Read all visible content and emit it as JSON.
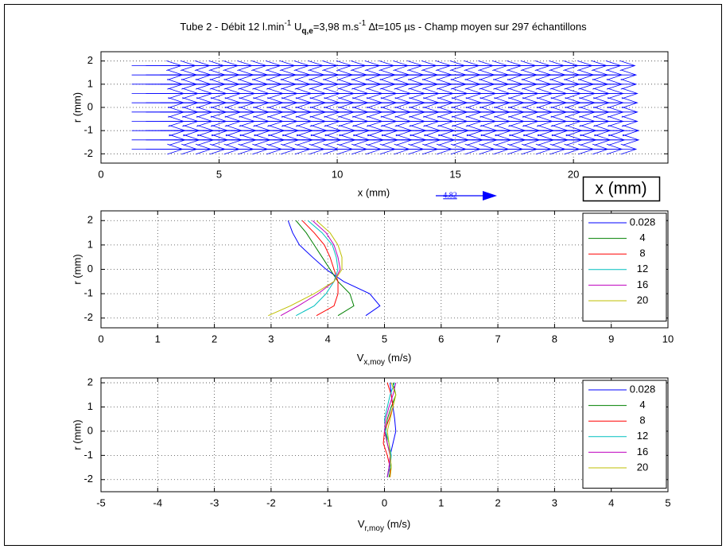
{
  "chart_data": [
    {
      "type": "quiver",
      "title": [
        "Tube 2 - Débit 12 l.min",
        "-1",
        " U",
        "q,e",
        "=3,98 m.s",
        "-1",
        " ∆t=105 µs - Champ moyen sur 297 échantillons"
      ],
      "xlabel": "x (mm)",
      "ylabel": "r (mm)",
      "xlim": [
        0,
        24
      ],
      "ylim": [
        -2.4,
        2.4
      ],
      "xticks": [
        0,
        5,
        10,
        15,
        20
      ],
      "yticks": [
        2,
        1,
        0,
        -1,
        -2
      ],
      "grid": true,
      "color": "#0000ff",
      "x": [
        1.3,
        1.9,
        2.5,
        3.1,
        3.7,
        4.3,
        4.9,
        5.5,
        6.1,
        6.7,
        7.3,
        7.9,
        8.5,
        9.1,
        9.7,
        10.3,
        10.9,
        11.5,
        12.1,
        12.7,
        13.3,
        13.9,
        14.5,
        15.1,
        15.7,
        16.3,
        16.9,
        17.5,
        18.1,
        18.7,
        19.3,
        19.9,
        20.5
      ],
      "rows": [
        {
          "r": 1.8,
          "u": 3.9
        },
        {
          "r": 1.4,
          "u": 4.0
        },
        {
          "r": 1.0,
          "u": 4.0
        },
        {
          "r": 0.6,
          "u": 4.1
        },
        {
          "r": 0.2,
          "u": 4.1
        },
        {
          "r": -0.2,
          "u": 4.1
        },
        {
          "r": -0.6,
          "u": 4.1
        },
        {
          "r": -1.0,
          "u": 4.2
        },
        {
          "r": -1.4,
          "u": 4.2
        },
        {
          "r": -1.8,
          "u": 4.0
        }
      ],
      "reference": 4.82,
      "annotation": "x (mm)"
    },
    {
      "type": "line",
      "xlabel": [
        "V",
        "x,moy",
        " (m/s)"
      ],
      "ylabel": "r (mm)",
      "xlim": [
        0,
        10
      ],
      "ylim": [
        -2.4,
        2.4
      ],
      "xticks": [
        0,
        1,
        2,
        3,
        4,
        5,
        6,
        7,
        8,
        9,
        10
      ],
      "yticks": [
        2,
        1,
        0,
        -1,
        -2
      ],
      "grid": true,
      "legend": "upper right",
      "y": [
        2,
        1.5,
        1,
        0.5,
        0,
        -0.5,
        -1,
        -1.5,
        -1.9
      ],
      "series": [
        {
          "name": "0.028",
          "color": "#0000ff",
          "values": [
            3.3,
            3.38,
            3.5,
            3.73,
            3.97,
            4.28,
            4.74,
            4.92,
            4.67
          ]
        },
        {
          "name": "4",
          "color": "#008000",
          "values": [
            3.44,
            3.62,
            3.76,
            3.9,
            4.04,
            4.18,
            4.39,
            4.46,
            4.18
          ]
        },
        {
          "name": "8",
          "color": "#ff0000",
          "values": [
            3.55,
            3.76,
            3.94,
            4.04,
            4.11,
            4.18,
            4.18,
            4.11,
            3.8
          ]
        },
        {
          "name": "12",
          "color": "#00bfbf",
          "values": [
            3.65,
            3.9,
            4.08,
            4.15,
            4.18,
            4.11,
            3.97,
            3.76,
            3.44
          ]
        },
        {
          "name": "16",
          "color": "#bf00bf",
          "values": [
            3.73,
            3.97,
            4.11,
            4.18,
            4.22,
            4.11,
            3.83,
            3.48,
            3.17
          ]
        },
        {
          "name": "20",
          "color": "#bfbf00",
          "values": [
            3.8,
            4.04,
            4.18,
            4.25,
            4.25,
            4.11,
            3.76,
            3.34,
            2.95
          ]
        }
      ]
    },
    {
      "type": "line",
      "xlabel": [
        "V",
        "r,moy",
        " (m/s)"
      ],
      "ylabel": "r (mm)",
      "xlim": [
        -5,
        5
      ],
      "ylim": [
        -2.5,
        2.2
      ],
      "xticks": [
        -5,
        -4,
        -3,
        -2,
        -1,
        0,
        1,
        2,
        3,
        4,
        5
      ],
      "yticks": [
        2,
        1,
        0,
        -1,
        -2
      ],
      "grid": true,
      "legend": "upper right",
      "y": [
        2,
        1.5,
        1,
        0.5,
        0,
        -0.5,
        -1,
        -1.5,
        -1.9
      ],
      "series": [
        {
          "name": "0.028",
          "color": "#0000ff",
          "values": [
            0.1,
            0.12,
            0.15,
            0.18,
            0.2,
            0.15,
            0.1,
            0.08,
            0.05
          ]
        },
        {
          "name": "4",
          "color": "#008000",
          "values": [
            0.15,
            0.2,
            0.12,
            0.05,
            0.02,
            0.05,
            0.1,
            0.12,
            0.08
          ]
        },
        {
          "name": "8",
          "color": "#ff0000",
          "values": [
            0.05,
            0.12,
            0.15,
            0.08,
            0,
            -0.02,
            0.05,
            0.1,
            0.1
          ]
        },
        {
          "name": "12",
          "color": "#00bfbf",
          "values": [
            0.18,
            0.1,
            0.05,
            0,
            0.02,
            0.08,
            0.12,
            0.1,
            0.05
          ]
        },
        {
          "name": "16",
          "color": "#bf00bf",
          "values": [
            0.2,
            0.15,
            0.08,
            0.02,
            0,
            0.05,
            0.1,
            0.08,
            0.05
          ]
        },
        {
          "name": "20",
          "color": "#bfbf00",
          "values": [
            0.12,
            0.2,
            0.15,
            0.1,
            0.05,
            0.08,
            0.1,
            0.12,
            0.1
          ]
        }
      ]
    }
  ]
}
